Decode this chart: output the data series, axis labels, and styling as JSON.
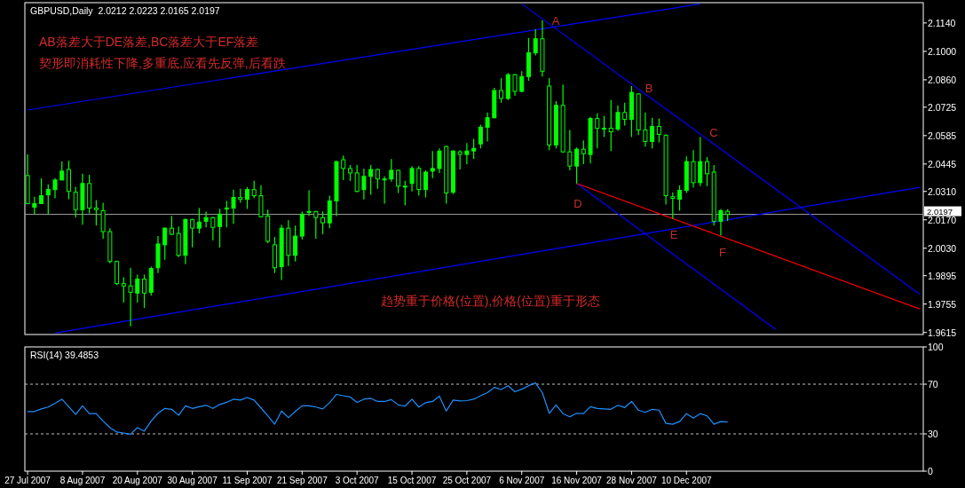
{
  "chart_data": [
    {
      "type": "candlestick",
      "title": "GBPUSD,Daily  2.0212 2.0223 2.0165 2.0197",
      "color": "#00ff00",
      "tick_labels": "y",
      "categories": [
        null,
        null,
        null,
        null,
        null,
        null,
        null,
        null,
        null,
        null,
        null,
        null,
        null,
        null,
        null,
        null,
        null,
        null,
        null,
        null,
        null,
        null,
        null,
        null,
        null,
        null,
        null,
        null,
        null,
        null,
        null,
        null,
        null,
        null,
        null,
        null,
        null,
        null,
        null,
        null,
        null,
        null,
        null,
        null,
        null,
        null,
        null,
        null,
        null,
        null,
        null,
        null,
        null,
        null,
        null,
        null,
        null,
        null,
        null,
        null,
        null,
        null,
        null,
        null,
        null,
        null,
        null,
        null,
        null,
        null,
        null,
        null,
        null,
        null,
        null,
        null,
        null,
        null,
        null,
        null,
        null,
        null,
        null,
        null,
        null,
        null,
        null,
        null,
        null,
        null,
        null,
        null,
        null,
        null,
        null,
        null,
        null,
        null,
        null,
        null,
        null,
        null,
        null,
        null,
        null,
        null,
        null,
        null,
        null,
        null,
        null,
        null,
        null,
        null,
        null,
        null,
        null,
        null,
        null,
        null,
        null,
        null,
        null,
        null,
        null,
        null,
        null,
        null,
        null,
        null,
        null
      ],
      "ohlc": [
        [
          2.0388,
          2.0492,
          2.025,
          2.025
        ],
        [
          2.0232,
          2.0284,
          2.0198,
          2.025
        ],
        [
          2.025,
          2.0375,
          2.025,
          2.0289
        ],
        [
          2.0293,
          2.0345,
          2.0198,
          2.0319
        ],
        [
          2.0319,
          2.0375,
          2.0276,
          2.0366
        ],
        [
          2.0366,
          2.0457,
          2.0366,
          2.041
        ],
        [
          2.0418,
          2.0461,
          2.0271,
          2.031
        ],
        [
          2.0306,
          2.0332,
          2.0181,
          2.022
        ],
        [
          2.022,
          2.0397,
          2.0146,
          2.0349
        ],
        [
          2.0349,
          2.0392,
          2.0202,
          2.0228
        ],
        [
          2.0228,
          2.0267,
          2.0142,
          2.022
        ],
        [
          2.0215,
          2.0254,
          2.0077,
          2.0112
        ],
        [
          2.0112,
          2.0129,
          1.9956,
          1.9965
        ],
        [
          1.9965,
          1.9969,
          1.9848,
          1.9856
        ],
        [
          1.9856,
          1.9887,
          1.9762,
          1.9844
        ],
        [
          1.9844,
          1.9934,
          1.9645,
          1.9813
        ],
        [
          1.9809,
          1.99,
          1.9762,
          1.9878
        ],
        [
          1.9878,
          1.99,
          1.9736,
          1.9809
        ],
        [
          1.9813,
          1.9939,
          1.9796,
          1.993
        ],
        [
          1.9934,
          2.009,
          1.9908,
          2.0051
        ],
        [
          2.0047,
          2.0133,
          1.9973,
          2.0129
        ],
        [
          2.0129,
          2.0189,
          2.0094,
          2.0099
        ],
        [
          2.0103,
          2.0137,
          1.9986,
          1.9995
        ],
        [
          1.9995,
          2.0176,
          1.9952,
          2.0172
        ],
        [
          2.0172,
          2.0176,
          2.0034,
          2.0129
        ],
        [
          2.0129,
          2.0228,
          2.0103,
          2.0159
        ],
        [
          2.0163,
          2.0211,
          2.0133,
          2.0181
        ],
        [
          2.0181,
          2.0185,
          2.0068,
          2.0133
        ],
        [
          2.0137,
          2.0224,
          2.0034,
          2.0198
        ],
        [
          2.0228,
          2.0263,
          2.0133,
          2.0228
        ],
        [
          2.0228,
          2.0319,
          2.015,
          2.028
        ],
        [
          2.028,
          2.0323,
          2.0254,
          2.0271
        ],
        [
          2.0271,
          2.0332,
          2.0224,
          2.0319
        ],
        [
          2.0319,
          2.0362,
          2.0276,
          2.0289
        ],
        [
          2.0289,
          2.034,
          2.0181,
          2.0185
        ],
        [
          2.0189,
          2.022,
          2.0055,
          2.0064
        ],
        [
          2.0047,
          2.0086,
          1.9908,
          1.9934
        ],
        [
          1.9939,
          2.0146,
          1.9874,
          2.0129
        ],
        [
          2.0129,
          2.0168,
          1.9943,
          1.9995
        ],
        [
          1.9995,
          2.0142,
          1.9965,
          2.009
        ],
        [
          2.009,
          2.0211,
          2.0073,
          2.0198
        ],
        [
          2.0211,
          2.0315,
          2.0189,
          2.0211
        ],
        [
          2.0211,
          2.0215,
          2.0077,
          2.0181
        ],
        [
          2.0181,
          2.0211,
          2.0099,
          2.0155
        ],
        [
          2.0155,
          2.0289,
          2.0129,
          2.0263
        ],
        [
          2.0263,
          2.0461,
          2.0189,
          2.0457
        ],
        [
          2.0466,
          2.0487,
          2.0366,
          2.0423
        ],
        [
          2.0423,
          2.044,
          2.0362,
          2.0401
        ],
        [
          2.0401,
          2.044,
          2.0306,
          2.031
        ],
        [
          2.0319,
          2.0423,
          2.0271,
          2.0384
        ],
        [
          2.0384,
          2.044,
          2.0293,
          2.0418
        ],
        [
          2.0418,
          2.0423,
          2.0323,
          2.0371
        ],
        [
          2.0371,
          2.0384,
          2.025,
          2.0371
        ],
        [
          2.0371,
          2.047,
          2.0358,
          2.0414
        ],
        [
          2.0414,
          2.0418,
          2.0302,
          2.0336
        ],
        [
          2.0336,
          2.0362,
          2.0241,
          2.0332
        ],
        [
          2.0349,
          2.0435,
          2.031,
          2.0423
        ],
        [
          2.0423,
          2.0435,
          2.0289,
          2.0319
        ],
        [
          2.0319,
          2.0414,
          2.028,
          2.0405
        ],
        [
          2.041,
          2.0509,
          2.0375,
          2.0423
        ],
        [
          2.0423,
          2.0522,
          2.0401,
          2.0509
        ],
        [
          2.0531,
          2.0535,
          2.025,
          2.0302
        ],
        [
          2.0306,
          2.0513,
          2.0297,
          2.0509
        ],
        [
          2.0505,
          2.0513,
          2.0418,
          2.0492
        ],
        [
          2.0492,
          2.0548,
          2.0444,
          2.0509
        ],
        [
          2.0509,
          2.0569,
          2.047,
          2.0522
        ],
        [
          2.0544,
          2.0639,
          2.0522,
          2.0626
        ],
        [
          2.0626,
          2.0699,
          2.0556,
          2.0673
        ],
        [
          2.0673,
          2.082,
          2.0669,
          2.0807
        ],
        [
          2.0807,
          2.0868,
          2.0747,
          2.0768
        ],
        [
          2.0768,
          2.0893,
          2.076,
          2.0885
        ],
        [
          2.0885,
          2.0889,
          2.0781,
          2.0803
        ],
        [
          2.0803,
          2.0902,
          2.0798,
          2.0876
        ],
        [
          2.0876,
          2.1066,
          2.0855,
          2.0993
        ],
        [
          2.0993,
          2.1109,
          2.098,
          2.1062
        ],
        [
          2.1062,
          2.1153,
          2.0876,
          2.0902
        ],
        [
          2.0829,
          2.0868,
          2.0513,
          2.0539
        ],
        [
          2.0539,
          2.0755,
          2.0522,
          2.0734
        ],
        [
          2.0734,
          2.0837,
          2.05,
          2.0505
        ],
        [
          2.0505,
          2.0613,
          2.0414,
          2.0435
        ],
        [
          2.0435,
          2.0526,
          2.0349,
          2.0518
        ],
        [
          2.0518,
          2.0561,
          2.0444,
          2.0496
        ],
        [
          2.0492,
          2.0677,
          2.0448,
          2.0669
        ],
        [
          2.0669,
          2.0695,
          2.0522,
          2.0621
        ],
        [
          2.0621,
          2.0682,
          2.0578,
          2.0621
        ],
        [
          2.0621,
          2.076,
          2.0509,
          2.0604
        ],
        [
          2.0617,
          2.0734,
          2.0608,
          2.0699
        ],
        [
          2.0699,
          2.0747,
          2.0634,
          2.0665
        ],
        [
          2.0665,
          2.0829,
          2.0578,
          2.0798
        ],
        [
          2.079,
          2.0794,
          2.0587,
          2.0613
        ],
        [
          2.0613,
          2.0699,
          2.0531,
          2.0556
        ],
        [
          2.0556,
          2.0673,
          2.0522,
          2.063
        ],
        [
          2.063,
          2.0669,
          2.0552,
          2.0591
        ],
        [
          2.0587,
          2.0591,
          2.0245,
          2.0289
        ],
        [
          2.0284,
          2.0306,
          2.0176,
          2.0276
        ],
        [
          2.0271,
          2.034,
          2.0215,
          2.0315
        ],
        [
          2.0315,
          2.0483,
          2.0302,
          2.0457
        ],
        [
          2.0457,
          2.0513,
          2.0328,
          2.0353
        ],
        [
          2.0353,
          2.0578,
          2.0336,
          2.0457
        ],
        [
          2.0457,
          2.0479,
          2.0336,
          2.0397
        ],
        [
          2.0405,
          2.044,
          2.0142,
          2.0163
        ],
        [
          2.0163,
          2.0224,
          2.0094,
          2.0215
        ],
        [
          2.0212,
          2.0223,
          2.0165,
          2.0197
        ],
        null,
        null,
        null,
        null,
        null,
        null,
        null,
        null,
        null,
        null,
        null,
        null,
        null,
        null,
        null,
        null,
        null,
        null,
        null,
        null,
        null,
        null,
        null,
        null,
        null,
        null,
        null,
        null
      ],
      "series": [
        {
          "type": "line",
          "color": "#0000ff",
          "values": [
            2.0711,
            null,
            null,
            null,
            null,
            null,
            null,
            null,
            null,
            null,
            null,
            null,
            null,
            null,
            null,
            null,
            null,
            null,
            null,
            null,
            null,
            null,
            null,
            null,
            null,
            null,
            null,
            null,
            null,
            null,
            null,
            null,
            null,
            null,
            null,
            null,
            null,
            null,
            null,
            null,
            null,
            null,
            null,
            null,
            null,
            null,
            null,
            null,
            null,
            null,
            null,
            null,
            null,
            null,
            null,
            null,
            null,
            null,
            null,
            null,
            null,
            null,
            null,
            null,
            null,
            null,
            null,
            null,
            null,
            null,
            null,
            null,
            null,
            null,
            null,
            null,
            null,
            null,
            null,
            null,
            null,
            null,
            null,
            null,
            null,
            null,
            null,
            null,
            null,
            null,
            null,
            null,
            null,
            null,
            null,
            null,
            null,
            null,
            2.1234,
            null,
            null,
            null,
            null,
            null,
            null,
            null,
            null,
            null,
            null,
            null,
            null,
            null,
            null,
            null,
            null,
            null,
            null,
            null,
            null,
            null,
            null,
            null,
            null,
            null,
            null,
            null,
            null,
            null,
            null,
            null,
            null
          ]
        },
        {
          "type": "line",
          "color": "#0000ff",
          "values": [
            null,
            null,
            null,
            null,
            1.9612,
            null,
            null,
            null,
            null,
            null,
            null,
            null,
            null,
            null,
            null,
            null,
            null,
            null,
            null,
            null,
            null,
            null,
            null,
            null,
            null,
            null,
            null,
            null,
            null,
            null,
            null,
            null,
            null,
            null,
            null,
            null,
            null,
            null,
            null,
            null,
            null,
            null,
            null,
            null,
            null,
            null,
            null,
            null,
            null,
            null,
            null,
            null,
            null,
            null,
            null,
            null,
            null,
            null,
            null,
            null,
            null,
            null,
            null,
            null,
            null,
            null,
            null,
            null,
            null,
            null,
            null,
            null,
            null,
            null,
            null,
            null,
            null,
            null,
            null,
            null,
            null,
            null,
            null,
            null,
            null,
            null,
            null,
            null,
            null,
            null,
            null,
            null,
            null,
            null,
            null,
            null,
            null,
            null,
            null,
            null,
            null,
            null,
            null,
            null,
            null,
            null,
            null,
            null,
            null,
            null,
            null,
            null,
            null,
            null,
            null,
            null,
            null,
            null,
            null,
            null,
            null,
            null,
            null,
            null,
            null,
            null,
            null,
            null,
            null,
            null,
            2.033
          ]
        },
        {
          "type": "line",
          "color": "#0000ff",
          "values": [
            null,
            null,
            null,
            null,
            null,
            null,
            null,
            null,
            null,
            null,
            null,
            null,
            null,
            null,
            null,
            null,
            null,
            null,
            null,
            null,
            null,
            null,
            null,
            null,
            null,
            null,
            null,
            null,
            null,
            null,
            null,
            null,
            null,
            null,
            null,
            null,
            null,
            null,
            null,
            null,
            null,
            null,
            null,
            null,
            null,
            null,
            null,
            null,
            null,
            null,
            null,
            null,
            null,
            null,
            null,
            null,
            null,
            null,
            null,
            null,
            null,
            null,
            null,
            null,
            null,
            null,
            null,
            null,
            null,
            null,
            null,
            null,
            2.1234,
            null,
            null,
            null,
            null,
            null,
            null,
            null,
            null,
            null,
            null,
            null,
            null,
            null,
            null,
            null,
            null,
            null,
            null,
            null,
            null,
            null,
            null,
            null,
            null,
            null,
            null,
            null,
            null,
            null,
            null,
            null,
            null,
            null,
            null,
            null,
            null,
            null,
            null,
            null,
            null,
            null,
            null,
            null,
            null,
            null,
            null,
            null,
            null,
            null,
            null,
            null,
            null,
            null,
            null,
            null,
            null,
            null,
            1.9803
          ]
        },
        {
          "type": "line",
          "color": "#0000ff",
          "values": [
            null,
            null,
            null,
            null,
            null,
            null,
            null,
            null,
            null,
            null,
            null,
            null,
            null,
            null,
            null,
            null,
            null,
            null,
            null,
            null,
            null,
            null,
            null,
            null,
            null,
            null,
            null,
            null,
            null,
            null,
            null,
            null,
            null,
            null,
            null,
            null,
            null,
            null,
            null,
            null,
            null,
            null,
            null,
            null,
            null,
            null,
            null,
            null,
            null,
            null,
            null,
            null,
            null,
            null,
            null,
            null,
            null,
            null,
            null,
            null,
            null,
            null,
            null,
            null,
            null,
            null,
            null,
            null,
            null,
            null,
            null,
            null,
            null,
            null,
            null,
            null,
            null,
            null,
            null,
            null,
            2.0349,
            null,
            null,
            null,
            null,
            null,
            null,
            null,
            null,
            null,
            null,
            null,
            null,
            null,
            null,
            null,
            null,
            null,
            null,
            null,
            null,
            null,
            null,
            null,
            null,
            null,
            null,
            null,
            null,
            1.963,
            null,
            null,
            null,
            null,
            null,
            null,
            null,
            null,
            null,
            null,
            null,
            null,
            null,
            null,
            null,
            null,
            null,
            null,
            null,
            null,
            null
          ]
        },
        {
          "type": "line",
          "color": "#ff0000",
          "values": [
            null,
            null,
            null,
            null,
            null,
            null,
            null,
            null,
            null,
            null,
            null,
            null,
            null,
            null,
            null,
            null,
            null,
            null,
            null,
            null,
            null,
            null,
            null,
            null,
            null,
            null,
            null,
            null,
            null,
            null,
            null,
            null,
            null,
            null,
            null,
            null,
            null,
            null,
            null,
            null,
            null,
            null,
            null,
            null,
            null,
            null,
            null,
            null,
            null,
            null,
            null,
            null,
            null,
            null,
            null,
            null,
            null,
            null,
            null,
            null,
            null,
            null,
            null,
            null,
            null,
            null,
            null,
            null,
            null,
            null,
            null,
            null,
            null,
            null,
            null,
            null,
            null,
            null,
            null,
            null,
            2.0349,
            null,
            null,
            null,
            null,
            null,
            null,
            null,
            null,
            null,
            null,
            null,
            null,
            null,
            null,
            null,
            null,
            null,
            null,
            null,
            null,
            null,
            null,
            null,
            null,
            null,
            null,
            null,
            null,
            null,
            null,
            null,
            null,
            null,
            null,
            null,
            null,
            null,
            null,
            null,
            null,
            null,
            null,
            null,
            null,
            null,
            null,
            null,
            null,
            null,
            1.9731
          ]
        }
      ],
      "ylim": [
        1.9605,
        2.124
      ],
      "yticks": [
        {
          "value": 2.114,
          "label": "2.1140"
        },
        {
          "value": 2.1,
          "label": "2.1000"
        },
        {
          "value": 2.086,
          "label": "2.0860"
        },
        {
          "value": 2.0725,
          "label": "2.0725"
        },
        {
          "value": 2.0585,
          "label": "2.0585"
        },
        {
          "value": 2.0445,
          "label": "2.0445"
        },
        {
          "value": 2.031,
          "label": "2.0310"
        },
        {
          "value": 2.017,
          "label": "2.0170"
        },
        {
          "value": 2.003,
          "label": "2.0030"
        },
        {
          "value": 1.9895,
          "label": "1.9895"
        },
        {
          "value": 1.9755,
          "label": "1.9755"
        },
        {
          "value": 1.9615,
          "label": "1.9615"
        }
      ],
      "ref_lines": [
        {
          "axis": "y",
          "value": 2.0197,
          "label": "2.0197",
          "color": "#a0a0a0"
        }
      ],
      "annotations": [
        "AB落差大于DE落差,BC落差大于EF落差",
        "契形即消耗性下降,多重底,应看先反弹,后看跌",
        "趋势重于价格(位置),价格(位置)重于形态",
        "A",
        "B",
        "C",
        "D",
        "E",
        "F"
      ]
    },
    {
      "type": "line",
      "title": "RSI(14) 39.4853",
      "categories": [
        "27 Jul 2007",
        null,
        null,
        null,
        null,
        null,
        null,
        null,
        "8 Aug 2007",
        null,
        null,
        null,
        null,
        null,
        null,
        null,
        "20 Aug 2007",
        null,
        null,
        null,
        null,
        null,
        null,
        null,
        "30 Aug 2007",
        null,
        null,
        null,
        null,
        null,
        null,
        null,
        "11 Sep 2007",
        null,
        null,
        null,
        null,
        null,
        null,
        null,
        "21 Sep 2007",
        null,
        null,
        null,
        null,
        null,
        null,
        null,
        "3 Oct 2007",
        null,
        null,
        null,
        null,
        null,
        null,
        null,
        "15 Oct 2007",
        null,
        null,
        null,
        null,
        null,
        null,
        null,
        "25 Oct 2007",
        null,
        null,
        null,
        null,
        null,
        null,
        null,
        "6 Nov 2007",
        null,
        null,
        null,
        null,
        null,
        null,
        null,
        "16 Nov 2007",
        null,
        null,
        null,
        null,
        null,
        null,
        null,
        "28 Nov 2007",
        null,
        null,
        null,
        null,
        null,
        null,
        null,
        "10 Dec 2007",
        null,
        null,
        null,
        null,
        null,
        null,
        null,
        null,
        null,
        null,
        null,
        null,
        null,
        null,
        null,
        null,
        null,
        null,
        null,
        null,
        null,
        null,
        null,
        null,
        null,
        null,
        null,
        null,
        null,
        null,
        null,
        null,
        null,
        null
      ],
      "series": [
        {
          "color": "#1e90ff",
          "values": [
            48.0,
            48.0,
            50.1,
            51.6,
            54.7,
            57.9,
            51.9,
            45.6,
            52.6,
            46.3,
            46.3,
            40.3,
            35.0,
            31.5,
            30.7,
            29.7,
            35.0,
            32.2,
            40.3,
            46.6,
            50.5,
            49.8,
            44.9,
            52.6,
            50.5,
            51.9,
            53.0,
            50.5,
            53.7,
            55.4,
            57.9,
            57.2,
            59.3,
            57.2,
            50.9,
            44.5,
            37.8,
            48.4,
            43.1,
            48.0,
            52.6,
            52.6,
            51.6,
            50.1,
            55.1,
            61.8,
            60.7,
            59.7,
            55.4,
            57.9,
            58.6,
            56.1,
            56.1,
            57.6,
            53.3,
            52.3,
            57.9,
            51.6,
            55.1,
            56.1,
            60.4,
            48.4,
            57.2,
            56.5,
            56.8,
            57.9,
            60.7,
            63.2,
            67.4,
            65.7,
            68.8,
            63.9,
            66.0,
            68.8,
            71.0,
            63.2,
            46.6,
            53.3,
            46.3,
            43.8,
            46.6,
            46.3,
            51.9,
            50.5,
            50.1,
            49.8,
            53.0,
            51.2,
            56.1,
            49.1,
            47.3,
            49.8,
            49.1,
            38.5,
            37.8,
            39.9,
            46.3,
            42.7,
            46.3,
            44.5,
            37.8,
            39.9,
            39.4853,
            null,
            null,
            null,
            null,
            null,
            null,
            null,
            null,
            null,
            null,
            null,
            null,
            null,
            null,
            null,
            null,
            null,
            null,
            null,
            null,
            null,
            null,
            null,
            null,
            null,
            null,
            null,
            null
          ]
        }
      ],
      "ylim": [
        0,
        100
      ],
      "yticks": [
        0,
        30,
        70,
        100
      ],
      "ref_lines": [
        {
          "axis": "y",
          "value": 70,
          "line_style": "dashed",
          "color": "#c0c0c0"
        },
        {
          "axis": "y",
          "value": 30,
          "line_style": "dashed",
          "color": "#c0c0c0"
        }
      ]
    }
  ]
}
